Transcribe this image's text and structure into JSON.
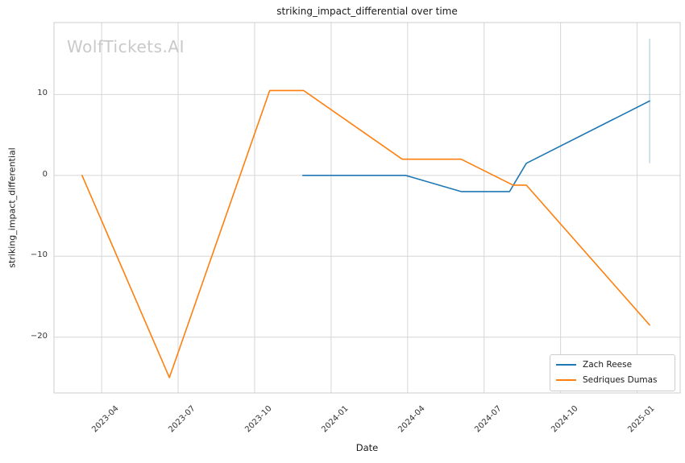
{
  "chart_data": {
    "type": "line",
    "title": "striking_impact_differential over time",
    "xlabel": "Date",
    "ylabel": "striking_impact_differential",
    "watermark": "WolfTickets.AI",
    "grid": true,
    "legend_position": "lower right",
    "background_color": "#ffffff",
    "grid_color": "#d6d6d6",
    "spine_color": "#cccccc",
    "x_ticks": [
      "2023-04",
      "2023-07",
      "2023-10",
      "2024-01",
      "2024-04",
      "2024-07",
      "2024-10",
      "2025-01"
    ],
    "y_ticks": [
      {
        "value": 10,
        "label": "10"
      },
      {
        "value": 0,
        "label": "0"
      },
      {
        "value": -10,
        "label": "−10"
      },
      {
        "value": -20,
        "label": "−20"
      }
    ],
    "x_range": [
      "2023-02-05",
      "2025-02-22"
    ],
    "y_range": [
      -26.9,
      18.9
    ],
    "series": [
      {
        "name": "Zach Reese",
        "color": "#1f77b4",
        "points": [
          [
            "2023-11-28",
            0
          ],
          [
            "2024-03-29",
            0
          ],
          [
            "2024-06-04",
            -2
          ],
          [
            "2024-08-01",
            -2
          ],
          [
            "2024-08-21",
            1.5
          ],
          [
            "2025-01-16",
            9.2
          ]
        ]
      },
      {
        "name": "Sedriques Dumas",
        "color": "#ff7f0e",
        "points": [
          [
            "2023-03-08",
            0
          ],
          [
            "2023-06-21",
            -25
          ],
          [
            "2023-10-19",
            10.5
          ],
          [
            "2023-11-29",
            10.5
          ],
          [
            "2024-03-25",
            2
          ],
          [
            "2024-06-04",
            2
          ],
          [
            "2024-08-05",
            -1.2
          ],
          [
            "2024-08-21",
            -1.2
          ],
          [
            "2025-01-16",
            -18.5
          ]
        ]
      }
    ],
    "error_bar": {
      "series": "Zach Reese",
      "date": "2025-01-16",
      "low": 1.5,
      "high": 16.9,
      "color": "#b1cfe5"
    }
  }
}
